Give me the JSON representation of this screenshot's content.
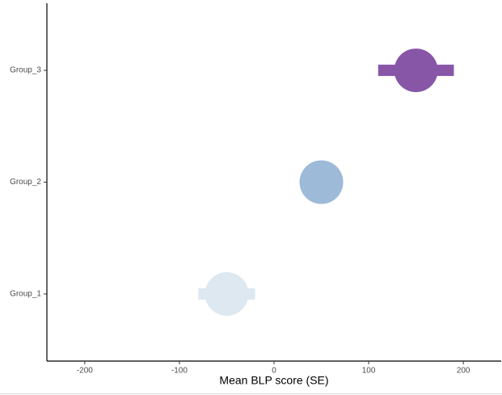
{
  "chart_data": {
    "type": "dot",
    "categories": [
      "Group_1",
      "Group_2",
      "Group_3"
    ],
    "values": [
      -50,
      50,
      150
    ],
    "errors": [
      30,
      20,
      40
    ],
    "colors": [
      "#dde8f1",
      "#9ebad9",
      "#8856a7"
    ],
    "xlim": [
      -240,
      240
    ],
    "xticks": [
      -200,
      -100,
      0,
      100,
      200
    ],
    "xlabel": "Mean BLP score (SE)"
  }
}
